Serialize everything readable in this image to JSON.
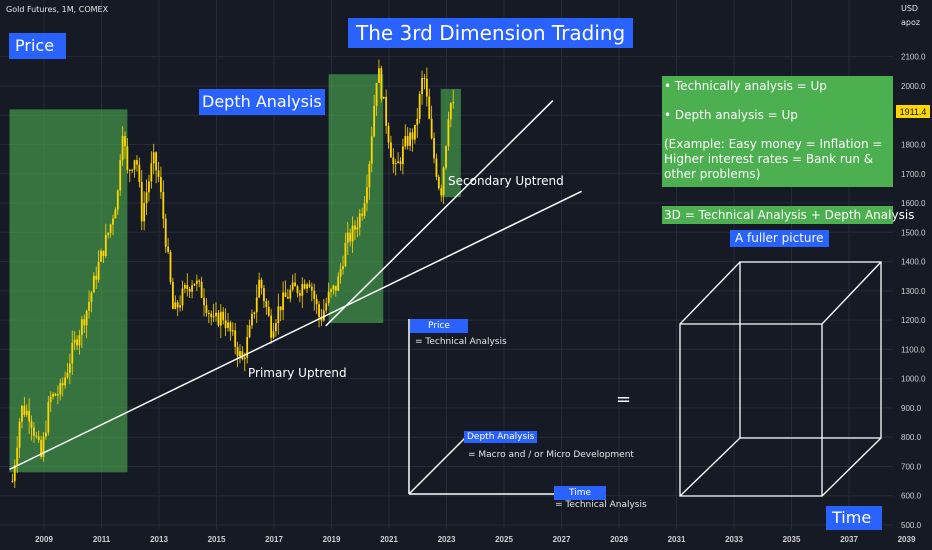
{
  "header": {
    "symbol": "Gold Futures, 1M, COMEX",
    "currency": "USD",
    "user": "apoz"
  },
  "chart_data": {
    "type": "candlestick",
    "title": "The 3rd Dimension Trading",
    "x_tick_labels": [
      "2009",
      "2011",
      "2013",
      "2015",
      "2017",
      "2019",
      "2021",
      "2023",
      "2025",
      "2027",
      "2029",
      "2031",
      "2033",
      "2035",
      "2037",
      "2039"
    ],
    "y_tick_labels": [
      "500.0",
      "600.0",
      "700.0",
      "800.0",
      "900.0",
      "1000.0",
      "1100.0",
      "1200.0",
      "1300.0",
      "1400.0",
      "1500.0",
      "1600.0",
      "1700.0",
      "1800.0",
      "1900.0",
      "2000.0",
      "2100.0"
    ],
    "ylim": [
      480,
      2180
    ],
    "last_price": "1911.4",
    "colors": {
      "candle": "#ffd700",
      "zone": "#4caf50",
      "trendline": "#ffffff",
      "label_bg": "#2962ff"
    },
    "price_path": [
      [
        2007.9,
        650
      ],
      [
        2008.2,
        900
      ],
      [
        2008.5,
        880
      ],
      [
        2008.9,
        730
      ],
      [
        2009.2,
        930
      ],
      [
        2009.6,
        960
      ],
      [
        2010.0,
        1100
      ],
      [
        2010.5,
        1240
      ],
      [
        2010.9,
        1390
      ],
      [
        2011.3,
        1520
      ],
      [
        2011.6,
        1650
      ],
      [
        2011.7,
        1890
      ],
      [
        2011.9,
        1700
      ],
      [
        2012.2,
        1770
      ],
      [
        2012.4,
        1560
      ],
      [
        2012.8,
        1750
      ],
      [
        2013.0,
        1680
      ],
      [
        2013.3,
        1420
      ],
      [
        2013.5,
        1220
      ],
      [
        2013.9,
        1300
      ],
      [
        2014.2,
        1340
      ],
      [
        2014.5,
        1290
      ],
      [
        2014.9,
        1190
      ],
      [
        2015.2,
        1220
      ],
      [
        2015.6,
        1130
      ],
      [
        2015.9,
        1060
      ],
      [
        2016.2,
        1180
      ],
      [
        2016.5,
        1340
      ],
      [
        2016.9,
        1170
      ],
      [
        2017.2,
        1250
      ],
      [
        2017.6,
        1300
      ],
      [
        2017.9,
        1310
      ],
      [
        2018.2,
        1350
      ],
      [
        2018.6,
        1200
      ],
      [
        2018.9,
        1280
      ],
      [
        2019.2,
        1320
      ],
      [
        2019.5,
        1460
      ],
      [
        2019.8,
        1510
      ],
      [
        2020.1,
        1590
      ],
      [
        2020.3,
        1730
      ],
      [
        2020.6,
        2070
      ],
      [
        2020.9,
        1880
      ],
      [
        2021.2,
        1700
      ],
      [
        2021.6,
        1810
      ],
      [
        2021.9,
        1840
      ],
      [
        2022.2,
        2050
      ],
      [
        2022.5,
        1790
      ],
      [
        2022.8,
        1630
      ],
      [
        2023.0,
        1830
      ],
      [
        2023.1,
        1950
      ],
      [
        2023.3,
        1911
      ]
    ],
    "zones": [
      {
        "x": [
          2007.8,
          2011.9
        ],
        "y": [
          680,
          1920
        ]
      },
      {
        "x": [
          2018.9,
          2020.8
        ],
        "y": [
          1190,
          2040
        ]
      },
      {
        "x": [
          2022.8,
          2023.5
        ],
        "y": [
          1620,
          1990
        ]
      }
    ],
    "trendlines": [
      {
        "name": "Primary Uptrend",
        "from": [
          2007.8,
          690
        ],
        "to": [
          2027.7,
          1640
        ]
      },
      {
        "name": "Secondary Uptrend",
        "from": [
          2018.8,
          1180
        ],
        "to": [
          2026.7,
          1950
        ]
      }
    ],
    "annotations": {
      "price": "Price",
      "depth_analysis": "Depth Analysis",
      "secondary_uptrend": "Secondary Uptrend",
      "primary_uptrend": "Primary Uptrend",
      "bullet1": "• Technically analysis = Up",
      "bullet2": "• Depth analysis = Up",
      "example": "(Example: Easy money = Inflation = Higher interest rates = Bank run & other problems)",
      "formula": "3D = Technical Analysis + Depth Analysis",
      "fuller": "A fuller picture",
      "axis_price": "Price",
      "axis_price_desc": "= Technical Analysis",
      "axis_depth": "Depth Analysis",
      "axis_depth_desc": "= Macro and / or Micro Development",
      "axis_time": "Time",
      "axis_time_desc": "= Technical Analysis",
      "equals": "=",
      "time": "Time"
    }
  }
}
